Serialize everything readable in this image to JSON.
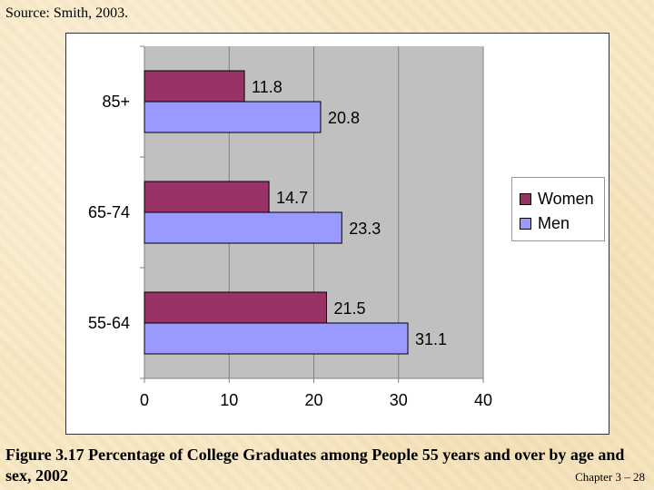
{
  "source_text": "Source: Smith, 2003.",
  "caption": "Figure 3.17 Percentage of College Graduates among People 55 years and over by age and sex, 2002",
  "footer": "Chapter 3 – 28",
  "colors": {
    "women": "#993366",
    "men": "#9999ff",
    "plot_bg": "#c0c0c0"
  },
  "chart_data": {
    "type": "bar",
    "orientation": "horizontal",
    "categories": [
      "85+",
      "65-74",
      "55-64"
    ],
    "series": [
      {
        "name": "Women",
        "values": [
          11.8,
          14.7,
          21.5
        ]
      },
      {
        "name": "Men",
        "values": [
          20.8,
          23.3,
          31.1
        ]
      }
    ],
    "xlim": [
      0,
      40
    ],
    "xticks": [
      0,
      10,
      20,
      30,
      40
    ],
    "legend": [
      "Women",
      "Men"
    ],
    "legend_position": "right",
    "grid": true,
    "title": "",
    "xlabel": "",
    "ylabel": ""
  }
}
